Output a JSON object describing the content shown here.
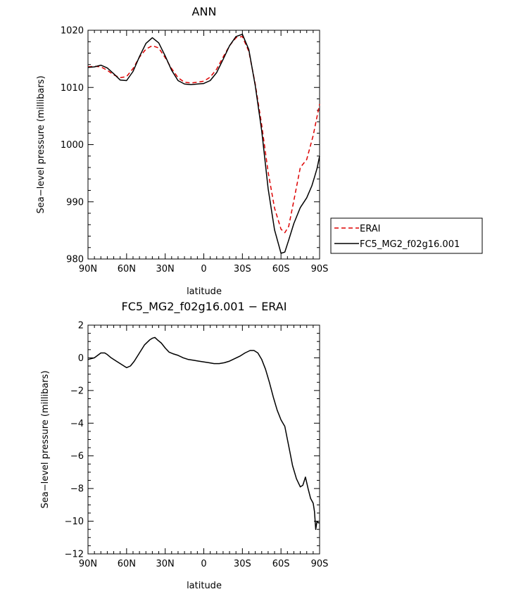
{
  "chart_data": [
    {
      "type": "line",
      "title": "ANN",
      "xlabel": "latitude",
      "ylabel": "Sea−level pressure (millibars)",
      "xlim": [
        90,
        -90
      ],
      "ylim": [
        980,
        1020
      ],
      "x_ticks": [
        {
          "value": 90,
          "label": "90N"
        },
        {
          "value": 60,
          "label": "60N"
        },
        {
          "value": 30,
          "label": "30N"
        },
        {
          "value": 0,
          "label": "0"
        },
        {
          "value": -30,
          "label": "30S"
        },
        {
          "value": -60,
          "label": "60S"
        },
        {
          "value": -90,
          "label": "90S"
        }
      ],
      "y_ticks": [
        980,
        990,
        1000,
        1010,
        1020
      ],
      "grid": false,
      "legend_position": "right",
      "series": [
        {
          "name": "ERAI",
          "color": "#dd0000",
          "dash": "dashed",
          "x": [
            90,
            85,
            80,
            75,
            70,
            65,
            60,
            55,
            50,
            45,
            40,
            35,
            30,
            25,
            20,
            15,
            10,
            5,
            0,
            -5,
            -10,
            -15,
            -20,
            -25,
            -30,
            -35,
            -40,
            -45,
            -50,
            -55,
            -60,
            -63,
            -66,
            -70,
            -75,
            -80,
            -85,
            -90
          ],
          "values": [
            1013.6,
            1013.7,
            1013.6,
            1013.0,
            1012.2,
            1011.7,
            1011.9,
            1013.3,
            1015.3,
            1016.7,
            1017.3,
            1016.9,
            1015.2,
            1013.3,
            1011.7,
            1010.9,
            1010.8,
            1010.9,
            1011.1,
            1011.8,
            1013.2,
            1015.3,
            1017.3,
            1018.7,
            1018.9,
            1016.3,
            1010.6,
            1003.4,
            995.2,
            988.9,
            985.2,
            984.6,
            985.7,
            990.2,
            996.0,
            997.4,
            1001.6,
            1007.1
          ]
        },
        {
          "name": "FC5_MG2_f02g16.001",
          "color": "#000000",
          "dash": "solid",
          "x": [
            90,
            85,
            80,
            75,
            70,
            65,
            60,
            55,
            50,
            45,
            40,
            35,
            30,
            25,
            20,
            15,
            10,
            5,
            0,
            -5,
            -10,
            -15,
            -20,
            -25,
            -30,
            -35,
            -40,
            -45,
            -50,
            -55,
            -60,
            -63,
            -66,
            -70,
            -75,
            -80,
            -84,
            -86,
            -88,
            -90
          ],
          "values": [
            1013.5,
            1013.6,
            1013.9,
            1013.4,
            1012.4,
            1011.3,
            1011.2,
            1012.8,
            1015.4,
            1017.7,
            1018.7,
            1017.8,
            1015.5,
            1013.0,
            1011.2,
            1010.6,
            1010.5,
            1010.6,
            1010.7,
            1011.2,
            1012.6,
            1014.9,
            1017.3,
            1018.9,
            1019.3,
            1016.6,
            1010.3,
            1002.4,
            992.3,
            985.1,
            981.0,
            981.2,
            983.3,
            986.2,
            989.0,
            990.7,
            992.8,
            994.3,
            995.8,
            998.0
          ]
        }
      ]
    },
    {
      "type": "line",
      "title": "FC5_MG2_f02g16.001 − ERAI",
      "xlabel": "latitude",
      "ylabel": "Sea−level pressure (millibars)",
      "xlim": [
        90,
        -90
      ],
      "ylim": [
        -12,
        2
      ],
      "x_ticks": [
        {
          "value": 90,
          "label": "90N"
        },
        {
          "value": 60,
          "label": "60N"
        },
        {
          "value": 30,
          "label": "30N"
        },
        {
          "value": 0,
          "label": "0"
        },
        {
          "value": -30,
          "label": "30S"
        },
        {
          "value": -60,
          "label": "60S"
        },
        {
          "value": -90,
          "label": "90S"
        }
      ],
      "y_ticks": [
        -12,
        -10,
        -8,
        -6,
        -4,
        -2,
        0,
        2
      ],
      "grid": false,
      "series": [
        {
          "color": "#000000",
          "dash": "solid",
          "x": [
            90,
            85,
            80,
            77,
            75,
            72,
            68,
            64,
            60,
            57,
            54,
            50,
            46,
            42,
            40,
            38,
            36,
            33,
            30,
            27,
            24,
            20,
            16,
            12,
            8,
            4,
            0,
            -4,
            -8,
            -12,
            -16,
            -20,
            -24,
            -28,
            -32,
            -36,
            -39,
            -42,
            -45,
            -48,
            -51,
            -54,
            -57,
            -60,
            -63,
            -65,
            -67,
            -69,
            -72,
            -75,
            -77,
            -79,
            -81,
            -83,
            -85,
            -86,
            -87,
            -88,
            -89,
            -90
          ],
          "values": [
            -0.1,
            0.0,
            0.3,
            0.3,
            0.2,
            0.0,
            -0.2,
            -0.4,
            -0.6,
            -0.5,
            -0.2,
            0.3,
            0.8,
            1.1,
            1.2,
            1.25,
            1.1,
            0.9,
            0.6,
            0.35,
            0.25,
            0.15,
            0.0,
            -0.1,
            -0.15,
            -0.2,
            -0.25,
            -0.3,
            -0.35,
            -0.35,
            -0.3,
            -0.2,
            -0.05,
            0.1,
            0.3,
            0.45,
            0.45,
            0.3,
            -0.1,
            -0.7,
            -1.5,
            -2.4,
            -3.2,
            -3.8,
            -4.2,
            -5.0,
            -5.8,
            -6.6,
            -7.4,
            -7.9,
            -7.8,
            -7.3,
            -8.0,
            -8.6,
            -8.9,
            -9.4,
            -10.5,
            -10.0,
            -10.1,
            -10.1
          ]
        }
      ]
    }
  ]
}
